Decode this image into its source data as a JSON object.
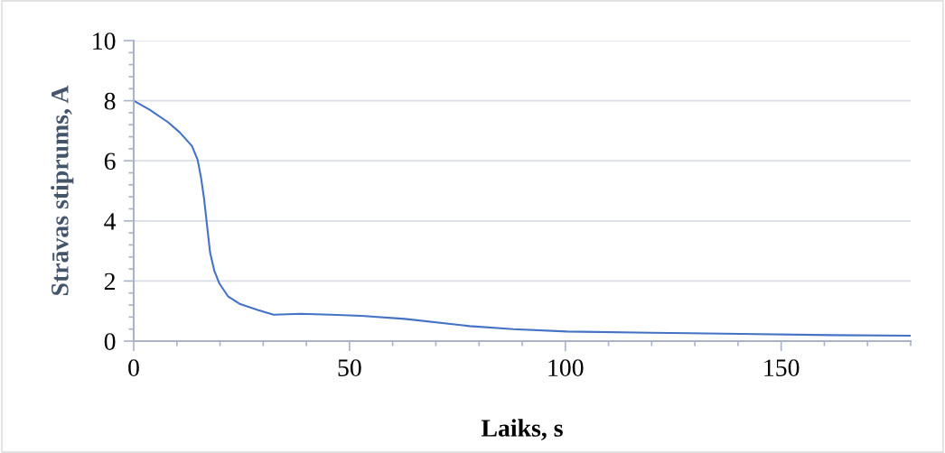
{
  "chart_data": {
    "type": "line",
    "xlabel": "Laiks, s",
    "ylabel": "Strāvas stiprums, A",
    "series": [
      {
        "color": "#4472c4",
        "x": [
          0,
          3.7,
          7.9,
          10.7,
          13.5,
          14.8,
          15.6,
          16.3,
          17,
          17.7,
          18.7,
          19.8,
          21.9,
          24.7,
          28.9,
          32.4,
          38.7,
          45.7,
          52.7,
          62.8,
          77.8,
          87.9,
          100.4,
          119.7,
          140.6,
          161.5,
          180
        ],
        "values": [
          8,
          7.7,
          7.29,
          6.94,
          6.49,
          6.04,
          5.44,
          4.74,
          3.84,
          2.94,
          2.33,
          1.93,
          1.48,
          1.23,
          1.03,
          0.88,
          0.91,
          0.88,
          0.84,
          0.74,
          0.5,
          0.4,
          0.32,
          0.28,
          0.24,
          0.2,
          0.18
        ]
      }
    ],
    "xlim": [
      0,
      180
    ],
    "ylim": [
      0,
      10
    ],
    "xticks": [
      0,
      {
        "value": 10,
        "label": null
      },
      {
        "value": 20,
        "label": null
      },
      {
        "value": 30,
        "label": null
      },
      {
        "value": 40,
        "label": null
      },
      50,
      {
        "value": 60,
        "label": null
      },
      {
        "value": 70,
        "label": null
      },
      {
        "value": 80,
        "label": null
      },
      {
        "value": 90,
        "label": null
      },
      100,
      {
        "value": 110,
        "label": null
      },
      {
        "value": 120,
        "label": null
      },
      {
        "value": 130,
        "label": null
      },
      {
        "value": 140,
        "label": null
      },
      150,
      {
        "value": 160,
        "label": null
      },
      {
        "value": 170,
        "label": null
      },
      {
        "value": 180,
        "label": null
      }
    ],
    "yticks": [
      0,
      {
        "value": 0.4,
        "label": null
      },
      {
        "value": 0.8,
        "label": null
      },
      {
        "value": 1.2,
        "label": null
      },
      {
        "value": 1.6,
        "label": null
      },
      2,
      {
        "value": 2.4,
        "label": null
      },
      {
        "value": 2.8,
        "label": null
      },
      {
        "value": 3.2,
        "label": null
      },
      {
        "value": 3.6,
        "label": null
      },
      4,
      {
        "value": 4.4,
        "label": null
      },
      {
        "value": 4.8,
        "label": null
      },
      {
        "value": 5.2,
        "label": null
      },
      {
        "value": 5.6,
        "label": null
      },
      6,
      {
        "value": 6.4,
        "label": null
      },
      {
        "value": 6.8,
        "label": null
      },
      {
        "value": 7.2,
        "label": null
      },
      {
        "value": 7.6,
        "label": null
      },
      8,
      {
        "value": 8.4,
        "label": null
      },
      {
        "value": 8.8,
        "label": null
      },
      {
        "value": 9.2,
        "label": null
      },
      {
        "value": 9.6,
        "label": null
      },
      10
    ],
    "grid": "y",
    "marker": "none",
    "line_style": "solid",
    "legend": false
  }
}
